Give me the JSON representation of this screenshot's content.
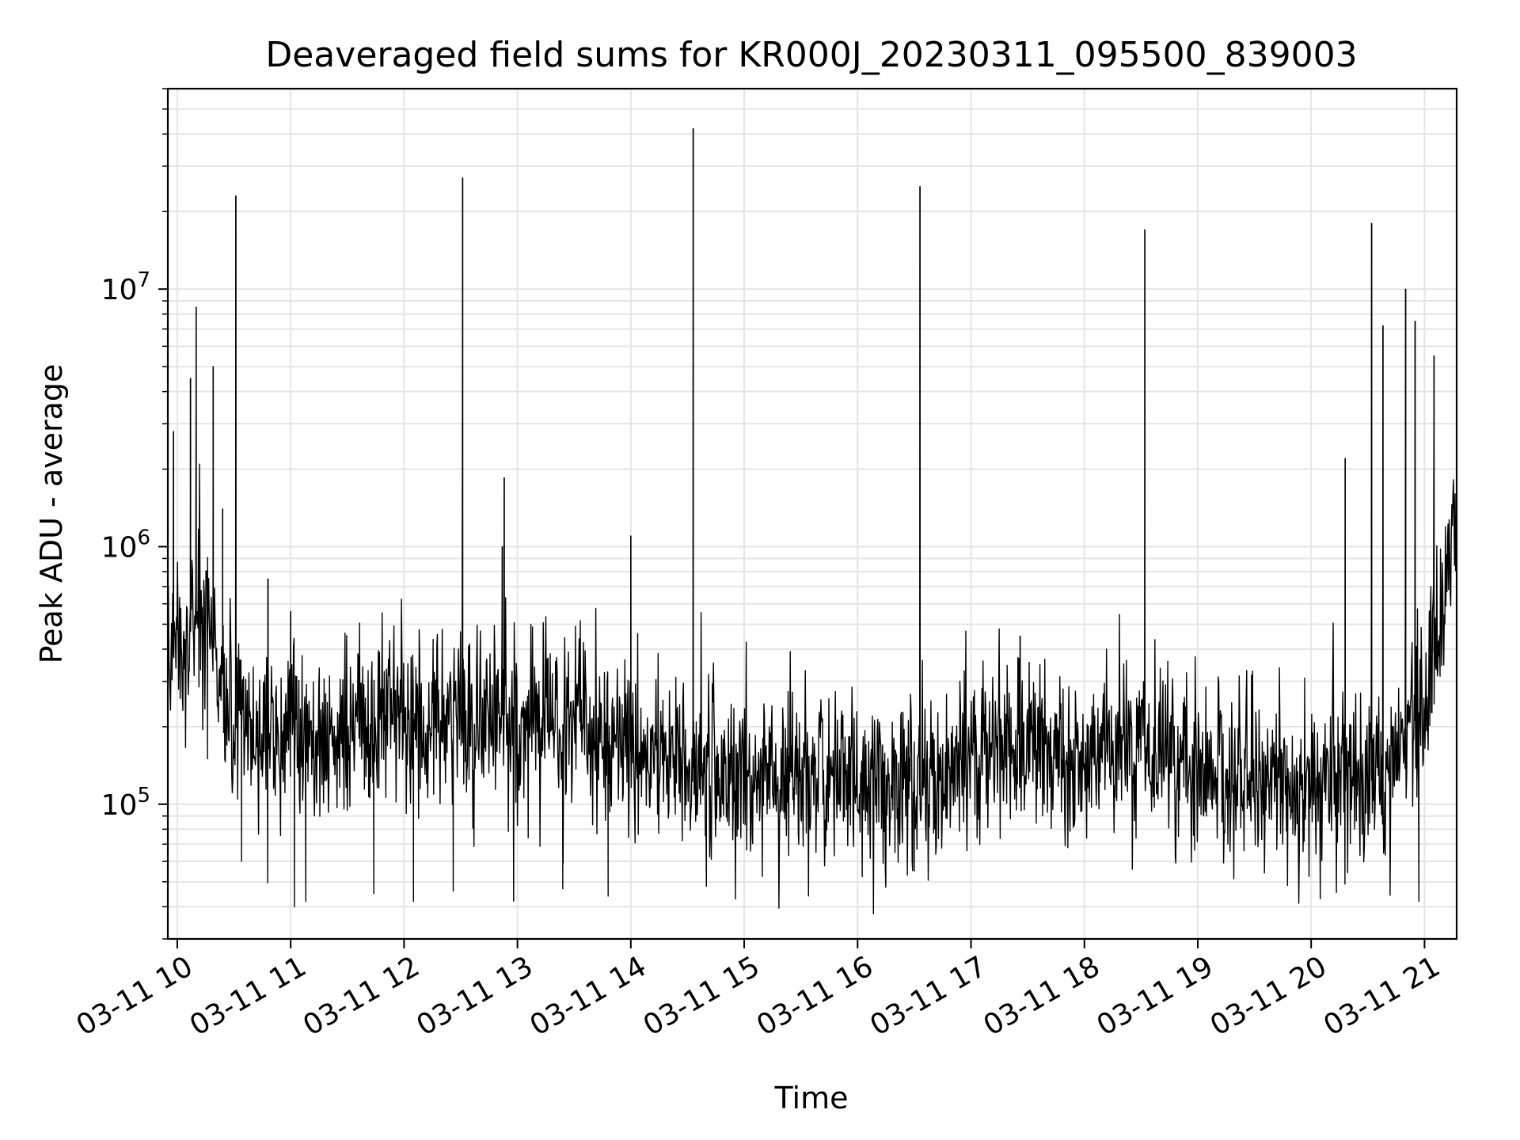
{
  "chart_data": {
    "type": "line",
    "title": "Deaveraged field sums for KR000J_20230311_095500_839003",
    "xlabel": "Time",
    "ylabel": "Peak ADU - average",
    "x_ticks": [
      "03-11 10",
      "03-11 11",
      "03-11 12",
      "03-11 13",
      "03-11 14",
      "03-11 15",
      "03-11 16",
      "03-11 17",
      "03-11 18",
      "03-11 19",
      "03-11 20",
      "03-11 21"
    ],
    "y_ticks": [
      {
        "value": 100000,
        "base": "10",
        "exp": "5"
      },
      {
        "value": 1000000,
        "base": "10",
        "exp": "6"
      },
      {
        "value": 10000000,
        "base": "10",
        "exp": "7"
      }
    ],
    "xlim": [
      "2023-03-11 09:55",
      "2023-03-11 21:17"
    ],
    "ylim": [
      30000,
      60000000
    ],
    "yscale": "log",
    "grid": true,
    "line_color": "#000000",
    "grid_color": "#e5e5e5",
    "series": [
      {
        "x": [
          "2023-03-11 09:55",
          "2023-03-11 10:00",
          "2023-03-11 10:05",
          "2023-03-11 10:10",
          "2023-03-11 10:15",
          "2023-03-11 10:20",
          "2023-03-11 10:25",
          "2023-03-11 10:30",
          "2023-03-11 10:40",
          "2023-03-11 11:00",
          "2023-03-11 11:30",
          "2023-03-11 12:00",
          "2023-03-11 12:30",
          "2023-03-11 13:00",
          "2023-03-11 13:30",
          "2023-03-11 14:00",
          "2023-03-11 14:30",
          "2023-03-11 15:00",
          "2023-03-11 15:30",
          "2023-03-11 16:00",
          "2023-03-11 16:30",
          "2023-03-11 17:00",
          "2023-03-11 17:15",
          "2023-03-11 17:30",
          "2023-03-11 18:00",
          "2023-03-11 18:15",
          "2023-03-11 18:30",
          "2023-03-11 19:00",
          "2023-03-11 19:30",
          "2023-03-11 20:00",
          "2023-03-11 20:30",
          "2023-03-11 20:45",
          "2023-03-11 21:00",
          "2023-03-11 21:10",
          "2023-03-11 21:17"
        ],
        "y": [
          350000,
          400000,
          450000,
          500000,
          480000,
          420000,
          300000,
          200000,
          180000,
          190000,
          200000,
          210000,
          230000,
          220000,
          200000,
          160000,
          140000,
          130000,
          130000,
          130000,
          125000,
          140000,
          160000,
          180000,
          130000,
          180000,
          160000,
          130000,
          130000,
          120000,
          120000,
          150000,
          250000,
          600000,
          1500000
        ],
        "noise_amplitude": 0.35,
        "spikes": [
          {
            "x": "2023-03-11 09:58",
            "y": 2800000
          },
          {
            "x": "2023-03-11 10:07",
            "y": 4500000
          },
          {
            "x": "2023-03-11 10:10",
            "y": 8500000
          },
          {
            "x": "2023-03-11 10:19",
            "y": 5000000
          },
          {
            "x": "2023-03-11 10:24",
            "y": 1400000
          },
          {
            "x": "2023-03-11 10:31",
            "y": 23000000
          },
          {
            "x": "2023-03-11 10:48",
            "y": 750000
          },
          {
            "x": "2023-03-11 11:00",
            "y": 560000
          },
          {
            "x": "2023-03-11 12:31",
            "y": 27000000
          },
          {
            "x": "2023-03-11 12:53",
            "y": 1850000
          },
          {
            "x": "2023-03-11 12:52",
            "y": 1000000
          },
          {
            "x": "2023-03-11 14:00",
            "y": 1100000
          },
          {
            "x": "2023-03-11 14:33",
            "y": 42000000
          },
          {
            "x": "2023-03-11 16:33",
            "y": 25000000
          },
          {
            "x": "2023-03-11 17:26",
            "y": 450000
          },
          {
            "x": "2023-03-11 18:32",
            "y": 17000000
          },
          {
            "x": "2023-03-11 20:18",
            "y": 2200000
          },
          {
            "x": "2023-03-11 20:32",
            "y": 18000000
          },
          {
            "x": "2023-03-11 20:38",
            "y": 7200000
          },
          {
            "x": "2023-03-11 20:50",
            "y": 10000000
          },
          {
            "x": "2023-03-11 20:55",
            "y": 7500000
          },
          {
            "x": "2023-03-11 21:05",
            "y": 5500000
          }
        ],
        "dips": [
          {
            "x": "2023-03-11 10:16",
            "y": 150000
          },
          {
            "x": "2023-03-11 10:34",
            "y": 60000
          },
          {
            "x": "2023-03-11 11:02",
            "y": 40000
          },
          {
            "x": "2023-03-11 11:08",
            "y": 42000
          },
          {
            "x": "2023-03-11 11:44",
            "y": 45000
          },
          {
            "x": "2023-03-11 12:05",
            "y": 42000
          },
          {
            "x": "2023-03-11 12:26",
            "y": 46000
          },
          {
            "x": "2023-03-11 13:24",
            "y": 47000
          },
          {
            "x": "2023-03-11 13:48",
            "y": 44000
          },
          {
            "x": "2023-03-11 14:40",
            "y": 48000
          },
          {
            "x": "2023-03-11 16:30",
            "y": 55000
          },
          {
            "x": "2023-03-11 20:57",
            "y": 42000
          }
        ]
      }
    ]
  }
}
